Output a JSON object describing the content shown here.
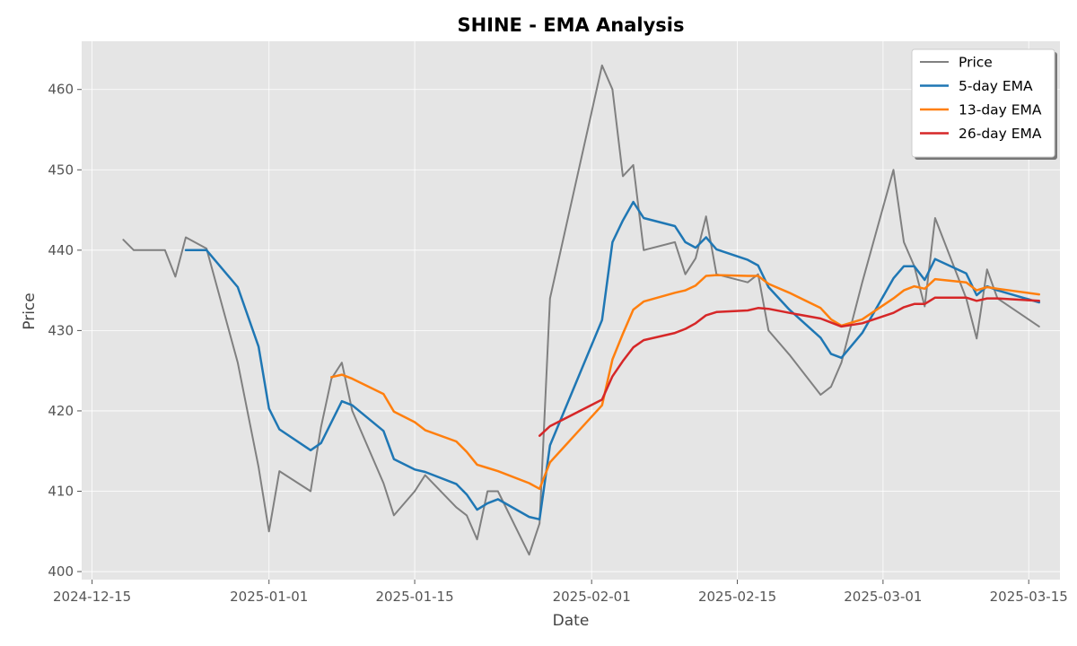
{
  "chart_data": {
    "type": "line",
    "title": "SHINE - EMA Analysis",
    "xlabel": "Date",
    "ylabel": "Price",
    "x_axis": {
      "min": "2024-12-14",
      "max": "2025-03-18",
      "ticks": [
        "2024-12-15",
        "2025-01-01",
        "2025-01-15",
        "2025-02-01",
        "2025-02-15",
        "2025-03-01",
        "2025-03-15"
      ],
      "tick_labels": [
        "2024-12-15",
        "2025-01-01",
        "2025-01-15",
        "2025-02-01",
        "2025-02-15",
        "2025-03-01",
        "2025-03-15"
      ]
    },
    "y_axis": {
      "min": 399,
      "max": 466,
      "ticks": [
        400,
        410,
        420,
        430,
        440,
        450,
        460
      ],
      "tick_labels": [
        "400",
        "410",
        "420",
        "430",
        "440",
        "450",
        "460"
      ]
    },
    "grid": true,
    "legend_position": "top-right",
    "series": [
      {
        "name": "Price",
        "color": "#808080",
        "points": [
          [
            "2024-12-18",
            441.3
          ],
          [
            "2024-12-19",
            440.0
          ],
          [
            "2024-12-22",
            440.0
          ],
          [
            "2024-12-23",
            436.7
          ],
          [
            "2024-12-24",
            441.6
          ],
          [
            "2024-12-26",
            440.2
          ],
          [
            "2024-12-29",
            426.0
          ],
          [
            "2024-12-31",
            413.0
          ],
          [
            "2025-01-01",
            405.0
          ],
          [
            "2025-01-02",
            412.5
          ],
          [
            "2025-01-05",
            410.0
          ],
          [
            "2025-01-06",
            418.0
          ],
          [
            "2025-01-07",
            424.0
          ],
          [
            "2025-01-08",
            426.0
          ],
          [
            "2025-01-09",
            420.0
          ],
          [
            "2025-01-12",
            411.0
          ],
          [
            "2025-01-13",
            407.0
          ],
          [
            "2025-01-15",
            410.0
          ],
          [
            "2025-01-16",
            412.0
          ],
          [
            "2025-01-19",
            408.0
          ],
          [
            "2025-01-20",
            407.0
          ],
          [
            "2025-01-21",
            404.0
          ],
          [
            "2025-01-22",
            410.0
          ],
          [
            "2025-01-23",
            410.0
          ],
          [
            "2025-01-26",
            402.1
          ],
          [
            "2025-01-27",
            406.0
          ],
          [
            "2025-01-28",
            434.0
          ],
          [
            "2025-02-02",
            463.0
          ],
          [
            "2025-02-03",
            460.0
          ],
          [
            "2025-02-04",
            449.2
          ],
          [
            "2025-02-05",
            450.6
          ],
          [
            "2025-02-06",
            440.0
          ],
          [
            "2025-02-09",
            441.0
          ],
          [
            "2025-02-10",
            437.0
          ],
          [
            "2025-02-11",
            439.0
          ],
          [
            "2025-02-12",
            444.2
          ],
          [
            "2025-02-13",
            437.0
          ],
          [
            "2025-02-16",
            436.0
          ],
          [
            "2025-02-17",
            437.0
          ],
          [
            "2025-02-18",
            430.0
          ],
          [
            "2025-02-20",
            427.0
          ],
          [
            "2025-02-23",
            422.0
          ],
          [
            "2025-02-24",
            423.0
          ],
          [
            "2025-02-25",
            426.0
          ],
          [
            "2025-02-27",
            436.0
          ],
          [
            "2025-03-02",
            450.0
          ],
          [
            "2025-03-03",
            441.0
          ],
          [
            "2025-03-04",
            438.0
          ],
          [
            "2025-03-05",
            433.0
          ],
          [
            "2025-03-06",
            444.0
          ],
          [
            "2025-03-09",
            434.0
          ],
          [
            "2025-03-10",
            429.0
          ],
          [
            "2025-03-11",
            437.6
          ],
          [
            "2025-03-12",
            434.0
          ],
          [
            "2025-03-16",
            430.5
          ]
        ]
      },
      {
        "name": "5-day EMA",
        "color": "#1f77b4",
        "points": [
          [
            "2024-12-24",
            440.0
          ],
          [
            "2024-12-26",
            440.0
          ],
          [
            "2024-12-29",
            435.4
          ],
          [
            "2024-12-31",
            428.0
          ],
          [
            "2025-01-01",
            420.3
          ],
          [
            "2025-01-02",
            417.7
          ],
          [
            "2025-01-05",
            415.1
          ],
          [
            "2025-01-06",
            416.0
          ],
          [
            "2025-01-08",
            421.2
          ],
          [
            "2025-01-09",
            420.7
          ],
          [
            "2025-01-12",
            417.5
          ],
          [
            "2025-01-13",
            414.0
          ],
          [
            "2025-01-15",
            412.7
          ],
          [
            "2025-01-16",
            412.4
          ],
          [
            "2025-01-19",
            410.9
          ],
          [
            "2025-01-20",
            409.6
          ],
          [
            "2025-01-21",
            407.7
          ],
          [
            "2025-01-22",
            408.5
          ],
          [
            "2025-01-23",
            409.0
          ],
          [
            "2025-01-26",
            406.8
          ],
          [
            "2025-01-27",
            406.5
          ],
          [
            "2025-01-28",
            415.7
          ],
          [
            "2025-02-02",
            431.3
          ],
          [
            "2025-02-03",
            441.0
          ],
          [
            "2025-02-04",
            443.7
          ],
          [
            "2025-02-05",
            446.0
          ],
          [
            "2025-02-06",
            444.0
          ],
          [
            "2025-02-09",
            443.0
          ],
          [
            "2025-02-10",
            441.0
          ],
          [
            "2025-02-11",
            440.3
          ],
          [
            "2025-02-12",
            441.6
          ],
          [
            "2025-02-13",
            440.1
          ],
          [
            "2025-02-16",
            438.8
          ],
          [
            "2025-02-17",
            438.1
          ],
          [
            "2025-02-18",
            435.4
          ],
          [
            "2025-02-20",
            432.6
          ],
          [
            "2025-02-23",
            429.1
          ],
          [
            "2025-02-24",
            427.1
          ],
          [
            "2025-02-25",
            426.6
          ],
          [
            "2025-02-27",
            429.7
          ],
          [
            "2025-03-02",
            436.5
          ],
          [
            "2025-03-03",
            438.0
          ],
          [
            "2025-03-04",
            438.0
          ],
          [
            "2025-03-05",
            436.3
          ],
          [
            "2025-03-06",
            438.9
          ],
          [
            "2025-03-09",
            437.1
          ],
          [
            "2025-03-10",
            434.4
          ],
          [
            "2025-03-11",
            435.5
          ],
          [
            "2025-03-12",
            435.0
          ],
          [
            "2025-03-16",
            433.5
          ]
        ]
      },
      {
        "name": "13-day EMA",
        "color": "#ff7f0e",
        "points": [
          [
            "2025-01-07",
            424.2
          ],
          [
            "2025-01-08",
            424.5
          ],
          [
            "2025-01-09",
            424.0
          ],
          [
            "2025-01-12",
            422.1
          ],
          [
            "2025-01-13",
            419.9
          ],
          [
            "2025-01-15",
            418.6
          ],
          [
            "2025-01-16",
            417.6
          ],
          [
            "2025-01-19",
            416.2
          ],
          [
            "2025-01-20",
            414.9
          ],
          [
            "2025-01-21",
            413.3
          ],
          [
            "2025-01-22",
            412.9
          ],
          [
            "2025-01-23",
            412.5
          ],
          [
            "2025-01-26",
            411.0
          ],
          [
            "2025-01-27",
            410.3
          ],
          [
            "2025-01-28",
            413.6
          ],
          [
            "2025-02-02",
            420.7
          ],
          [
            "2025-02-03",
            426.4
          ],
          [
            "2025-02-04",
            429.6
          ],
          [
            "2025-02-05",
            432.6
          ],
          [
            "2025-02-06",
            433.6
          ],
          [
            "2025-02-09",
            434.7
          ],
          [
            "2025-02-10",
            435.0
          ],
          [
            "2025-02-11",
            435.6
          ],
          [
            "2025-02-12",
            436.8
          ],
          [
            "2025-02-13",
            436.9
          ],
          [
            "2025-02-16",
            436.8
          ],
          [
            "2025-02-17",
            436.8
          ],
          [
            "2025-02-18",
            435.8
          ],
          [
            "2025-02-20",
            434.7
          ],
          [
            "2025-02-23",
            432.8
          ],
          [
            "2025-02-24",
            431.4
          ],
          [
            "2025-02-25",
            430.6
          ],
          [
            "2025-02-27",
            431.4
          ],
          [
            "2025-03-02",
            434.0
          ],
          [
            "2025-03-03",
            435.0
          ],
          [
            "2025-03-04",
            435.5
          ],
          [
            "2025-03-05",
            435.2
          ],
          [
            "2025-03-06",
            436.4
          ],
          [
            "2025-03-09",
            436.0
          ],
          [
            "2025-03-10",
            435.0
          ],
          [
            "2025-03-11",
            435.4
          ],
          [
            "2025-03-12",
            435.2
          ],
          [
            "2025-03-16",
            434.5
          ]
        ]
      },
      {
        "name": "26-day EMA",
        "color": "#d62728",
        "points": [
          [
            "2025-01-27",
            416.9
          ],
          [
            "2025-01-28",
            418.1
          ],
          [
            "2025-02-02",
            421.4
          ],
          [
            "2025-02-03",
            424.3
          ],
          [
            "2025-02-04",
            426.2
          ],
          [
            "2025-02-05",
            427.9
          ],
          [
            "2025-02-06",
            428.8
          ],
          [
            "2025-02-09",
            429.7
          ],
          [
            "2025-02-10",
            430.2
          ],
          [
            "2025-02-11",
            430.9
          ],
          [
            "2025-02-12",
            431.9
          ],
          [
            "2025-02-13",
            432.3
          ],
          [
            "2025-02-16",
            432.5
          ],
          [
            "2025-02-17",
            432.8
          ],
          [
            "2025-02-18",
            432.7
          ],
          [
            "2025-02-20",
            432.2
          ],
          [
            "2025-02-23",
            431.5
          ],
          [
            "2025-02-24",
            431.0
          ],
          [
            "2025-02-25",
            430.5
          ],
          [
            "2025-02-27",
            430.9
          ],
          [
            "2025-03-02",
            432.2
          ],
          [
            "2025-03-03",
            432.9
          ],
          [
            "2025-03-04",
            433.3
          ],
          [
            "2025-03-05",
            433.3
          ],
          [
            "2025-03-06",
            434.1
          ],
          [
            "2025-03-09",
            434.1
          ],
          [
            "2025-03-10",
            433.7
          ],
          [
            "2025-03-11",
            434.0
          ],
          [
            "2025-03-12",
            434.0
          ],
          [
            "2025-03-16",
            433.7
          ]
        ]
      }
    ]
  }
}
